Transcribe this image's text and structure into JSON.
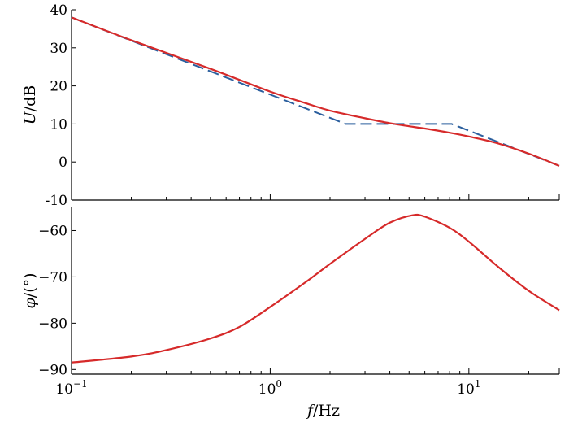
{
  "chart_data": [
    {
      "type": "line",
      "panel": "magnitude",
      "ylabel_symbol": "U",
      "ylabel_unit": "/dB",
      "xscale": "log",
      "xlim": [
        0.1,
        28.5
      ],
      "ylim": [
        -10,
        40
      ],
      "yticks": [
        40,
        30,
        20,
        10,
        0,
        -10
      ],
      "ytick_labels": [
        "40",
        "30",
        "20",
        "10",
        "0",
        "-10"
      ],
      "grid": false,
      "series": [
        {
          "style": "dashed",
          "color": "#2b5f9e",
          "x": [
            0.1,
            2.4,
            8.2,
            28.5
          ],
          "y": [
            38,
            10,
            10,
            -1
          ]
        },
        {
          "style": "solid",
          "color": "#d62a2a",
          "x": [
            0.1,
            0.2,
            0.5,
            1.0,
            1.5,
            2.0,
            3.0,
            4.0,
            5.0,
            6.0,
            8.0,
            10.0,
            14.0,
            20.0,
            28.5
          ],
          "y": [
            38,
            32,
            24.5,
            18.5,
            15.5,
            13.5,
            11.5,
            10.2,
            9.4,
            8.8,
            7.7,
            6.7,
            4.9,
            2.2,
            -1
          ]
        }
      ]
    },
    {
      "type": "line",
      "panel": "phase",
      "ylabel_symbol": "φ",
      "ylabel_unit": "/(°)",
      "xscale": "log",
      "xlim": [
        0.1,
        28.5
      ],
      "ylim": [
        -91,
        -55
      ],
      "yticks": [
        -60,
        -70,
        -80,
        -90
      ],
      "ytick_labels": [
        "−60",
        "−70",
        "−80",
        "−90"
      ],
      "xticks": [
        0.1,
        1,
        10
      ],
      "xtick_labels": [
        {
          "base": "10",
          "exp": "−1"
        },
        {
          "base": "10",
          "exp": "0"
        },
        {
          "base": "10",
          "exp": "1"
        }
      ],
      "xlabel_symbol": "f",
      "xlabel_unit": "/Hz",
      "grid": false,
      "series": [
        {
          "style": "solid",
          "color": "#d62a2a",
          "x": [
            0.1,
            0.2,
            0.3,
            0.5,
            0.7,
            1.0,
            1.5,
            2.0,
            3.0,
            4.0,
            5.2,
            6.0,
            8.0,
            10.0,
            14.0,
            20.0,
            28.5
          ],
          "y": [
            -88.5,
            -87.2,
            -85.8,
            -83.3,
            -80.8,
            -76.5,
            -71.2,
            -67.2,
            -61.8,
            -58.3,
            -56.7,
            -57.0,
            -59.4,
            -62.4,
            -67.8,
            -73.0,
            -77.2
          ]
        }
      ]
    }
  ]
}
